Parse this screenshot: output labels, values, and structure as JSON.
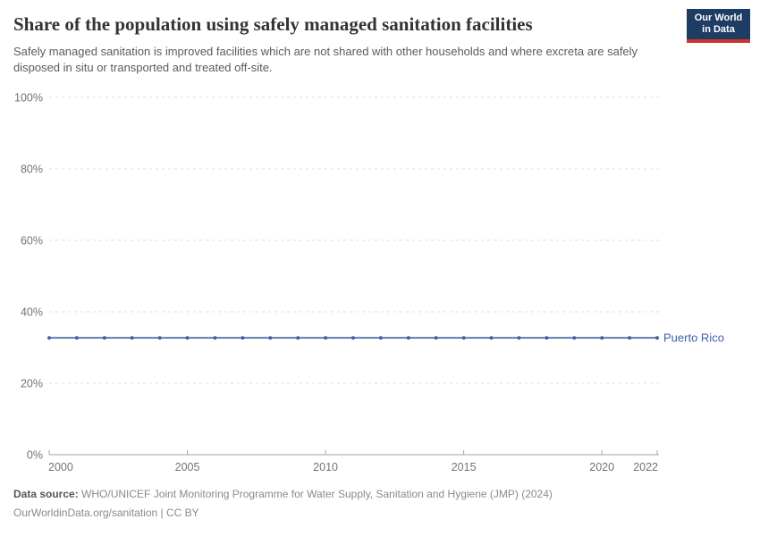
{
  "header": {
    "title": "Share of the population using safely managed sanitation facilities",
    "subtitle": "Safely managed sanitation is improved facilities which are not shared with other households and where excreta are safely disposed in situ or transported and treated off-site.",
    "logo": {
      "line1": "Our World",
      "line2": "in Data"
    }
  },
  "chart_data": {
    "type": "line",
    "title": "Share of the population using safely managed sanitation facilities",
    "xlabel": "",
    "ylabel": "",
    "x_range": [
      2000,
      2022
    ],
    "ylim": [
      0,
      100
    ],
    "yticks": [
      0,
      20,
      40,
      60,
      80,
      100
    ],
    "ytick_suffix": "%",
    "xticks": [
      2000,
      2005,
      2010,
      2015,
      2020,
      2022
    ],
    "grid": "horizontal-dashed",
    "legend_position": "end-of-line",
    "x": [
      2000,
      2001,
      2002,
      2003,
      2004,
      2005,
      2006,
      2007,
      2008,
      2009,
      2010,
      2011,
      2012,
      2013,
      2014,
      2015,
      2016,
      2017,
      2018,
      2019,
      2020,
      2021,
      2022
    ],
    "series": [
      {
        "name": "Puerto Rico",
        "color": "#3e61a5",
        "values": [
          32.7,
          32.7,
          32.7,
          32.7,
          32.7,
          32.7,
          32.7,
          32.7,
          32.7,
          32.7,
          32.7,
          32.7,
          32.7,
          32.7,
          32.7,
          32.7,
          32.7,
          32.7,
          32.7,
          32.7,
          32.7,
          32.7,
          32.7
        ]
      }
    ]
  },
  "footer": {
    "datasource_label": "Data source:",
    "datasource_text": "WHO/UNICEF Joint Monitoring Programme for Water Supply, Sanitation and Hygiene (JMP) (2024)",
    "license_line": "OurWorldinData.org/sanitation | CC BY"
  },
  "colors": {
    "grid": "#dcdcdc",
    "axis": "#a5a5a5",
    "axis_text": "#737373",
    "logo_bg": "#1d3d63",
    "logo_red": "#d0342c",
    "series": "#3e61a5"
  }
}
